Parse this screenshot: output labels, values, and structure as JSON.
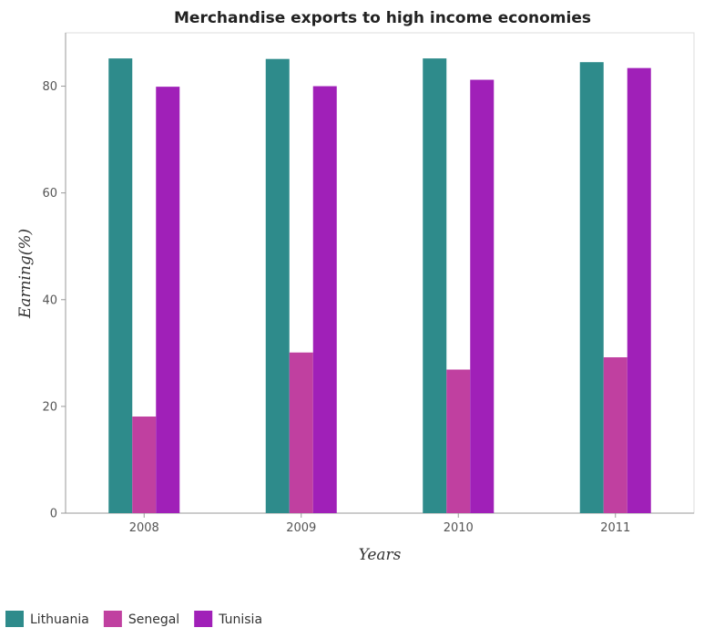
{
  "chart_data": {
    "type": "bar",
    "title": "Merchandise exports to high income economies",
    "xlabel": "Years",
    "ylabel": "Earning(%)",
    "categories": [
      "2008",
      "2009",
      "2010",
      "2011"
    ],
    "series": [
      {
        "name": "Lithuania",
        "color": "#2e8b8b",
        "values": [
          85.2,
          85.1,
          85.2,
          84.5
        ]
      },
      {
        "name": "Senegal",
        "color": "#c040a0",
        "values": [
          18.1,
          30.1,
          26.9,
          29.2
        ]
      },
      {
        "name": "Tunisia",
        "color": "#a020b8",
        "values": [
          79.9,
          80.0,
          81.2,
          83.4
        ]
      }
    ],
    "ylim": [
      0,
      90
    ],
    "yticks": [
      0,
      20,
      40,
      60,
      80
    ],
    "grid": false,
    "legend_position": "bottom-left"
  }
}
